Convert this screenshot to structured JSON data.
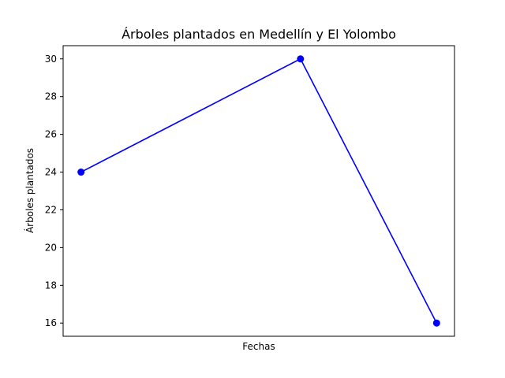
{
  "chart_data": {
    "type": "line",
    "title": "Árboles plantados en Medellín y El Yolombo",
    "xlabel": "Fechas",
    "ylabel": "Árboles plantados",
    "x": [
      0,
      0.5586,
      0.9051
    ],
    "xlim": [
      -0.0455,
      0.9506
    ],
    "ylim": [
      15.3,
      30.7
    ],
    "yticks": [
      16,
      18,
      20,
      22,
      24,
      26,
      28,
      30
    ],
    "xticks": [],
    "grid": false,
    "legend": "none",
    "series": [
      {
        "name": "Árboles plantados",
        "values": [
          24,
          30,
          16
        ],
        "color": "#0000ff",
        "marker": "circle"
      }
    ]
  }
}
